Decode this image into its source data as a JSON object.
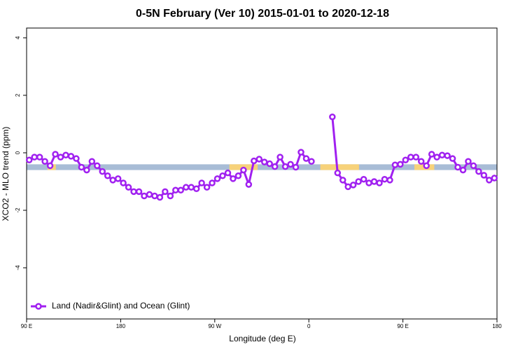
{
  "chart_data": {
    "type": "line",
    "title": "0-5N February (Ver 10)   2015-01-01 to 2020-12-18",
    "xlabel": "Longitude (deg E)",
    "ylabel": "XCO2 - MLO trend (ppm)",
    "xlim": [
      90,
      540
    ],
    "ylim": [
      -5.78,
      4.34
    ],
    "xticks": [
      {
        "value": 90,
        "label": "90 E"
      },
      {
        "value": 180,
        "label": "180"
      },
      {
        "value": 270,
        "label": "90 W"
      },
      {
        "value": 360,
        "label": "0"
      },
      {
        "value": 450,
        "label": "90 E"
      },
      {
        "value": 540,
        "label": "180"
      }
    ],
    "yticks": [
      -4,
      -2,
      0,
      2,
      4
    ],
    "band": {
      "range": [
        -0.6,
        -0.4
      ],
      "color": "#a8bcd6"
    },
    "land": {
      "color": "#f7d27a",
      "segments": [
        [
          110,
          118
        ],
        [
          284,
          311
        ],
        [
          371,
          408
        ],
        [
          461,
          480
        ]
      ]
    },
    "legend": "bottom-left",
    "x": [
      92.5,
      97.5,
      102.5,
      107.5,
      112.5,
      117.5,
      122.5,
      127.5,
      132.5,
      137.5,
      142.5,
      147.5,
      152.5,
      157.5,
      162.5,
      167.5,
      172.5,
      177.5,
      182.5,
      187.5,
      192.5,
      197.5,
      202.5,
      207.5,
      212.5,
      217.5,
      222.5,
      227.5,
      232.5,
      237.5,
      242.5,
      247.5,
      252.5,
      257.5,
      262.5,
      267.5,
      272.5,
      277.5,
      282.5,
      287.5,
      292.5,
      297.5,
      302.5,
      307.5,
      312.5,
      317.5,
      322.5,
      327.5,
      332.5,
      337.5,
      342.5,
      347.5,
      352.5,
      357.5,
      362.5,
      367.5,
      372.5,
      377.5,
      382.5,
      387.5,
      392.5,
      397.5,
      402.5,
      407.5,
      412.5,
      417.5,
      422.5,
      427.5,
      432.5,
      437.5,
      442.5,
      447.5,
      452.5,
      457.5,
      462.5,
      467.5,
      472.5,
      477.5,
      482.5,
      487.5,
      492.5,
      497.5,
      502.5,
      507.5,
      512.5,
      517.5,
      522.5,
      527.5,
      532.5,
      537.5
    ],
    "series": [
      {
        "name": "Land (Nadir&Glint) and Ocean (Glint)",
        "color": "#a020f0",
        "values": [
          -0.25,
          -0.15,
          -0.15,
          -0.3,
          -0.45,
          -0.05,
          -0.15,
          -0.08,
          -0.12,
          -0.2,
          -0.5,
          -0.6,
          -0.3,
          -0.45,
          -0.65,
          -0.8,
          -0.95,
          -0.9,
          -1.05,
          -1.2,
          -1.35,
          -1.35,
          -1.5,
          -1.45,
          -1.5,
          -1.55,
          -1.35,
          -1.5,
          -1.3,
          -1.3,
          -1.2,
          -1.2,
          -1.25,
          -1.05,
          -1.2,
          -1.05,
          -0.9,
          -0.8,
          -0.7,
          -0.9,
          -0.8,
          -0.6,
          -1.1,
          -0.28,
          -0.22,
          -0.32,
          -0.38,
          -0.48,
          -0.15,
          -0.48,
          -0.4,
          -0.5,
          0.02,
          -0.2,
          -0.3,
          null,
          null,
          null,
          1.25,
          -0.7,
          -0.95,
          -1.18,
          -1.12,
          -1.0,
          -0.92,
          -1.05,
          -1.0,
          -1.05,
          -0.92,
          -0.95,
          -0.42,
          -0.4,
          -0.25,
          -0.15,
          -0.15,
          -0.3,
          -0.45,
          -0.05,
          -0.15,
          -0.08,
          -0.1,
          -0.2,
          -0.5,
          -0.6,
          -0.3,
          -0.45,
          -0.65,
          -0.78,
          -0.95,
          -0.88
        ]
      }
    ]
  }
}
